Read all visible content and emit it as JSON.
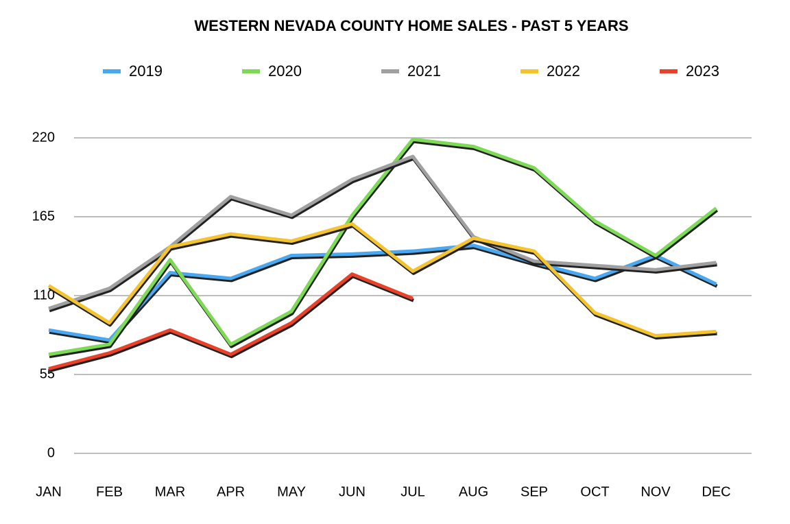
{
  "chart_data": {
    "type": "line",
    "title": "WESTERN NEVADA COUNTY HOME SALES - PAST 5 YEARS",
    "categories": [
      "JAN",
      "FEB",
      "MAR",
      "APR",
      "MAY",
      "JUN",
      "JUL",
      "AUG",
      "SEP",
      "OCT",
      "NOV",
      "DEC"
    ],
    "series": [
      {
        "name": "2019",
        "color": "#4aa8f0",
        "values": [
          86,
          79,
          126,
          122,
          138,
          139,
          141,
          145,
          133,
          122,
          138,
          118
        ]
      },
      {
        "name": "2020",
        "color": "#7ed957",
        "values": [
          69,
          76,
          135,
          76,
          99,
          166,
          219,
          214,
          199,
          162,
          138,
          171
        ]
      },
      {
        "name": "2021",
        "color": "#a0a0a0",
        "values": [
          101,
          115,
          144,
          179,
          166,
          191,
          207,
          151,
          134,
          131,
          128,
          133
        ]
      },
      {
        "name": "2022",
        "color": "#f4c430",
        "values": [
          117,
          91,
          144,
          153,
          148,
          160,
          127,
          150,
          141,
          98,
          82,
          85
        ]
      },
      {
        "name": "2023",
        "color": "#e8432a",
        "values": [
          59,
          70,
          86,
          69,
          91,
          125,
          108,
          null,
          null,
          null,
          null,
          null
        ]
      }
    ],
    "ylim": [
      0,
      220
    ],
    "yticks": [
      0,
      55,
      110,
      165,
      220
    ],
    "grid": true
  }
}
